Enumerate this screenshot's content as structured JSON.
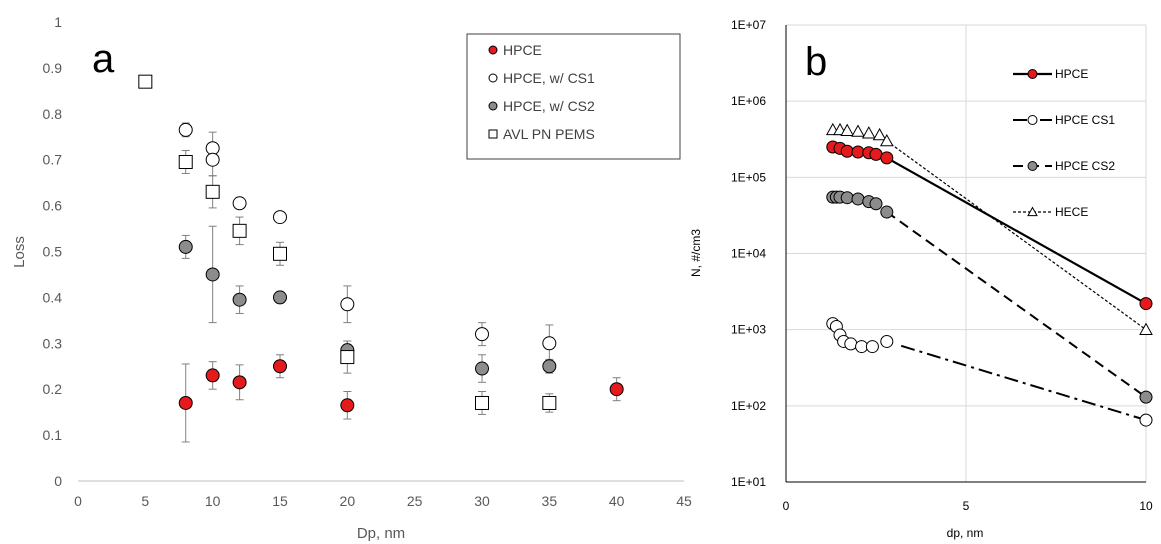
{
  "chart_data": [
    {
      "panel_label": "a",
      "type": "scatter",
      "xlabel": "Dp, nm",
      "ylabel": "Loss",
      "xlim": [
        0,
        45
      ],
      "ylim": [
        0,
        1
      ],
      "xticks": [
        "0",
        "5",
        "10",
        "15",
        "20",
        "25",
        "30",
        "35",
        "40",
        "45"
      ],
      "yticks": [
        "0",
        "0.1",
        "0.2",
        "0.3",
        "0.4",
        "0.5",
        "0.6",
        "0.7",
        "0.8",
        "0.9",
        "1"
      ],
      "grid": false,
      "legend_position": "top-right",
      "series": [
        {
          "name": "HPCE",
          "marker": "circle-filled",
          "color": "#e41a1c",
          "points": [
            {
              "x": 8,
              "y": 0.17,
              "err": 0.085
            },
            {
              "x": 10,
              "y": 0.23,
              "err": 0.03
            },
            {
              "x": 12,
              "y": 0.215,
              "err": 0.038
            },
            {
              "x": 15,
              "y": 0.25,
              "err": 0.025
            },
            {
              "x": 20,
              "y": 0.165,
              "err": 0.03
            },
            {
              "x": 40,
              "y": 0.2,
              "err": 0.025
            }
          ]
        },
        {
          "name": "HPCE, w/ CS1",
          "marker": "circle-open",
          "color": "#000000",
          "points": [
            {
              "x": 8,
              "y": 0.765,
              "err": 0.015
            },
            {
              "x": 10,
              "y": 0.725,
              "err": 0.035
            },
            {
              "x": 10,
              "y": 0.7,
              "err": 0.035
            },
            {
              "x": 12,
              "y": 0.605,
              "err": 0.0
            },
            {
              "x": 15,
              "y": 0.575,
              "err": 0.0
            },
            {
              "x": 20,
              "y": 0.385,
              "err": 0.04
            },
            {
              "x": 30,
              "y": 0.32,
              "err": 0.025
            },
            {
              "x": 35,
              "y": 0.3,
              "err": 0.04
            }
          ]
        },
        {
          "name": "HPCE, w/ CS2",
          "marker": "circle-gray",
          "color": "#8c8c8c",
          "points": [
            {
              "x": 8,
              "y": 0.51,
              "err": 0.025
            },
            {
              "x": 10,
              "y": 0.45,
              "err": 0.105
            },
            {
              "x": 12,
              "y": 0.395,
              "err": 0.03
            },
            {
              "x": 15,
              "y": 0.4,
              "err": 0.0
            },
            {
              "x": 20,
              "y": 0.285,
              "err": 0.02
            },
            {
              "x": 30,
              "y": 0.245,
              "err": 0.03
            },
            {
              "x": 35,
              "y": 0.25,
              "err": 0.015
            }
          ]
        },
        {
          "name": "AVL PN PEMS",
          "marker": "square-open",
          "color": "#000000",
          "points": [
            {
              "x": 5,
              "y": 0.87,
              "err": 0.0
            },
            {
              "x": 8,
              "y": 0.695,
              "err": 0.025
            },
            {
              "x": 10,
              "y": 0.63,
              "err": 0.035
            },
            {
              "x": 12,
              "y": 0.545,
              "err": 0.03
            },
            {
              "x": 15,
              "y": 0.495,
              "err": 0.025
            },
            {
              "x": 20,
              "y": 0.27,
              "err": 0.035
            },
            {
              "x": 30,
              "y": 0.17,
              "err": 0.025
            },
            {
              "x": 35,
              "y": 0.17,
              "err": 0.02
            }
          ]
        }
      ]
    },
    {
      "panel_label": "b",
      "type": "line",
      "xlabel": "dp, nm",
      "ylabel": "N, #/cm3",
      "xlim": [
        0,
        10
      ],
      "ylim": [
        10,
        10000000
      ],
      "yscale": "log",
      "xticks": [
        "0",
        "5",
        "10"
      ],
      "yticks": [
        "1E+01",
        "1E+02",
        "1E+03",
        "1E+04",
        "1E+05",
        "1E+06",
        "1E+07"
      ],
      "grid": true,
      "legend_position": "top-right",
      "series": [
        {
          "name": "HPCE",
          "marker": "circle-filled",
          "color": "#e41a1c",
          "linestyle": "solid",
          "x": [
            1.3,
            1.5,
            1.7,
            2.0,
            2.3,
            2.5,
            2.8,
            10
          ],
          "y": [
            250000,
            240000,
            220000,
            215000,
            210000,
            200000,
            180000,
            2200
          ]
        },
        {
          "name": "HPCE CS1",
          "marker": "circle-open",
          "color": "#000000",
          "linestyle": "dash-dot",
          "x": [
            1.3,
            1.4,
            1.5,
            1.6,
            1.8,
            2.1,
            2.4,
            2.8,
            10
          ],
          "y": [
            1200,
            1100,
            850,
            700,
            650,
            600,
            600,
            700,
            65
          ]
        },
        {
          "name": "HPCE CS2",
          "marker": "circle-gray",
          "color": "#8c8c8c",
          "linestyle": "dashed",
          "x": [
            1.3,
            1.4,
            1.5,
            1.7,
            2.0,
            2.3,
            2.5,
            2.8,
            10
          ],
          "y": [
            55000,
            55000,
            55000,
            54000,
            52000,
            48000,
            45000,
            35000,
            130
          ]
        },
        {
          "name": "HECE",
          "marker": "triangle-open",
          "color": "#000000",
          "linestyle": "dotted",
          "x": [
            1.3,
            1.5,
            1.7,
            2.0,
            2.3,
            2.6,
            2.8,
            10
          ],
          "y": [
            420000,
            420000,
            410000,
            400000,
            380000,
            360000,
            300000,
            1000
          ]
        }
      ]
    }
  ]
}
